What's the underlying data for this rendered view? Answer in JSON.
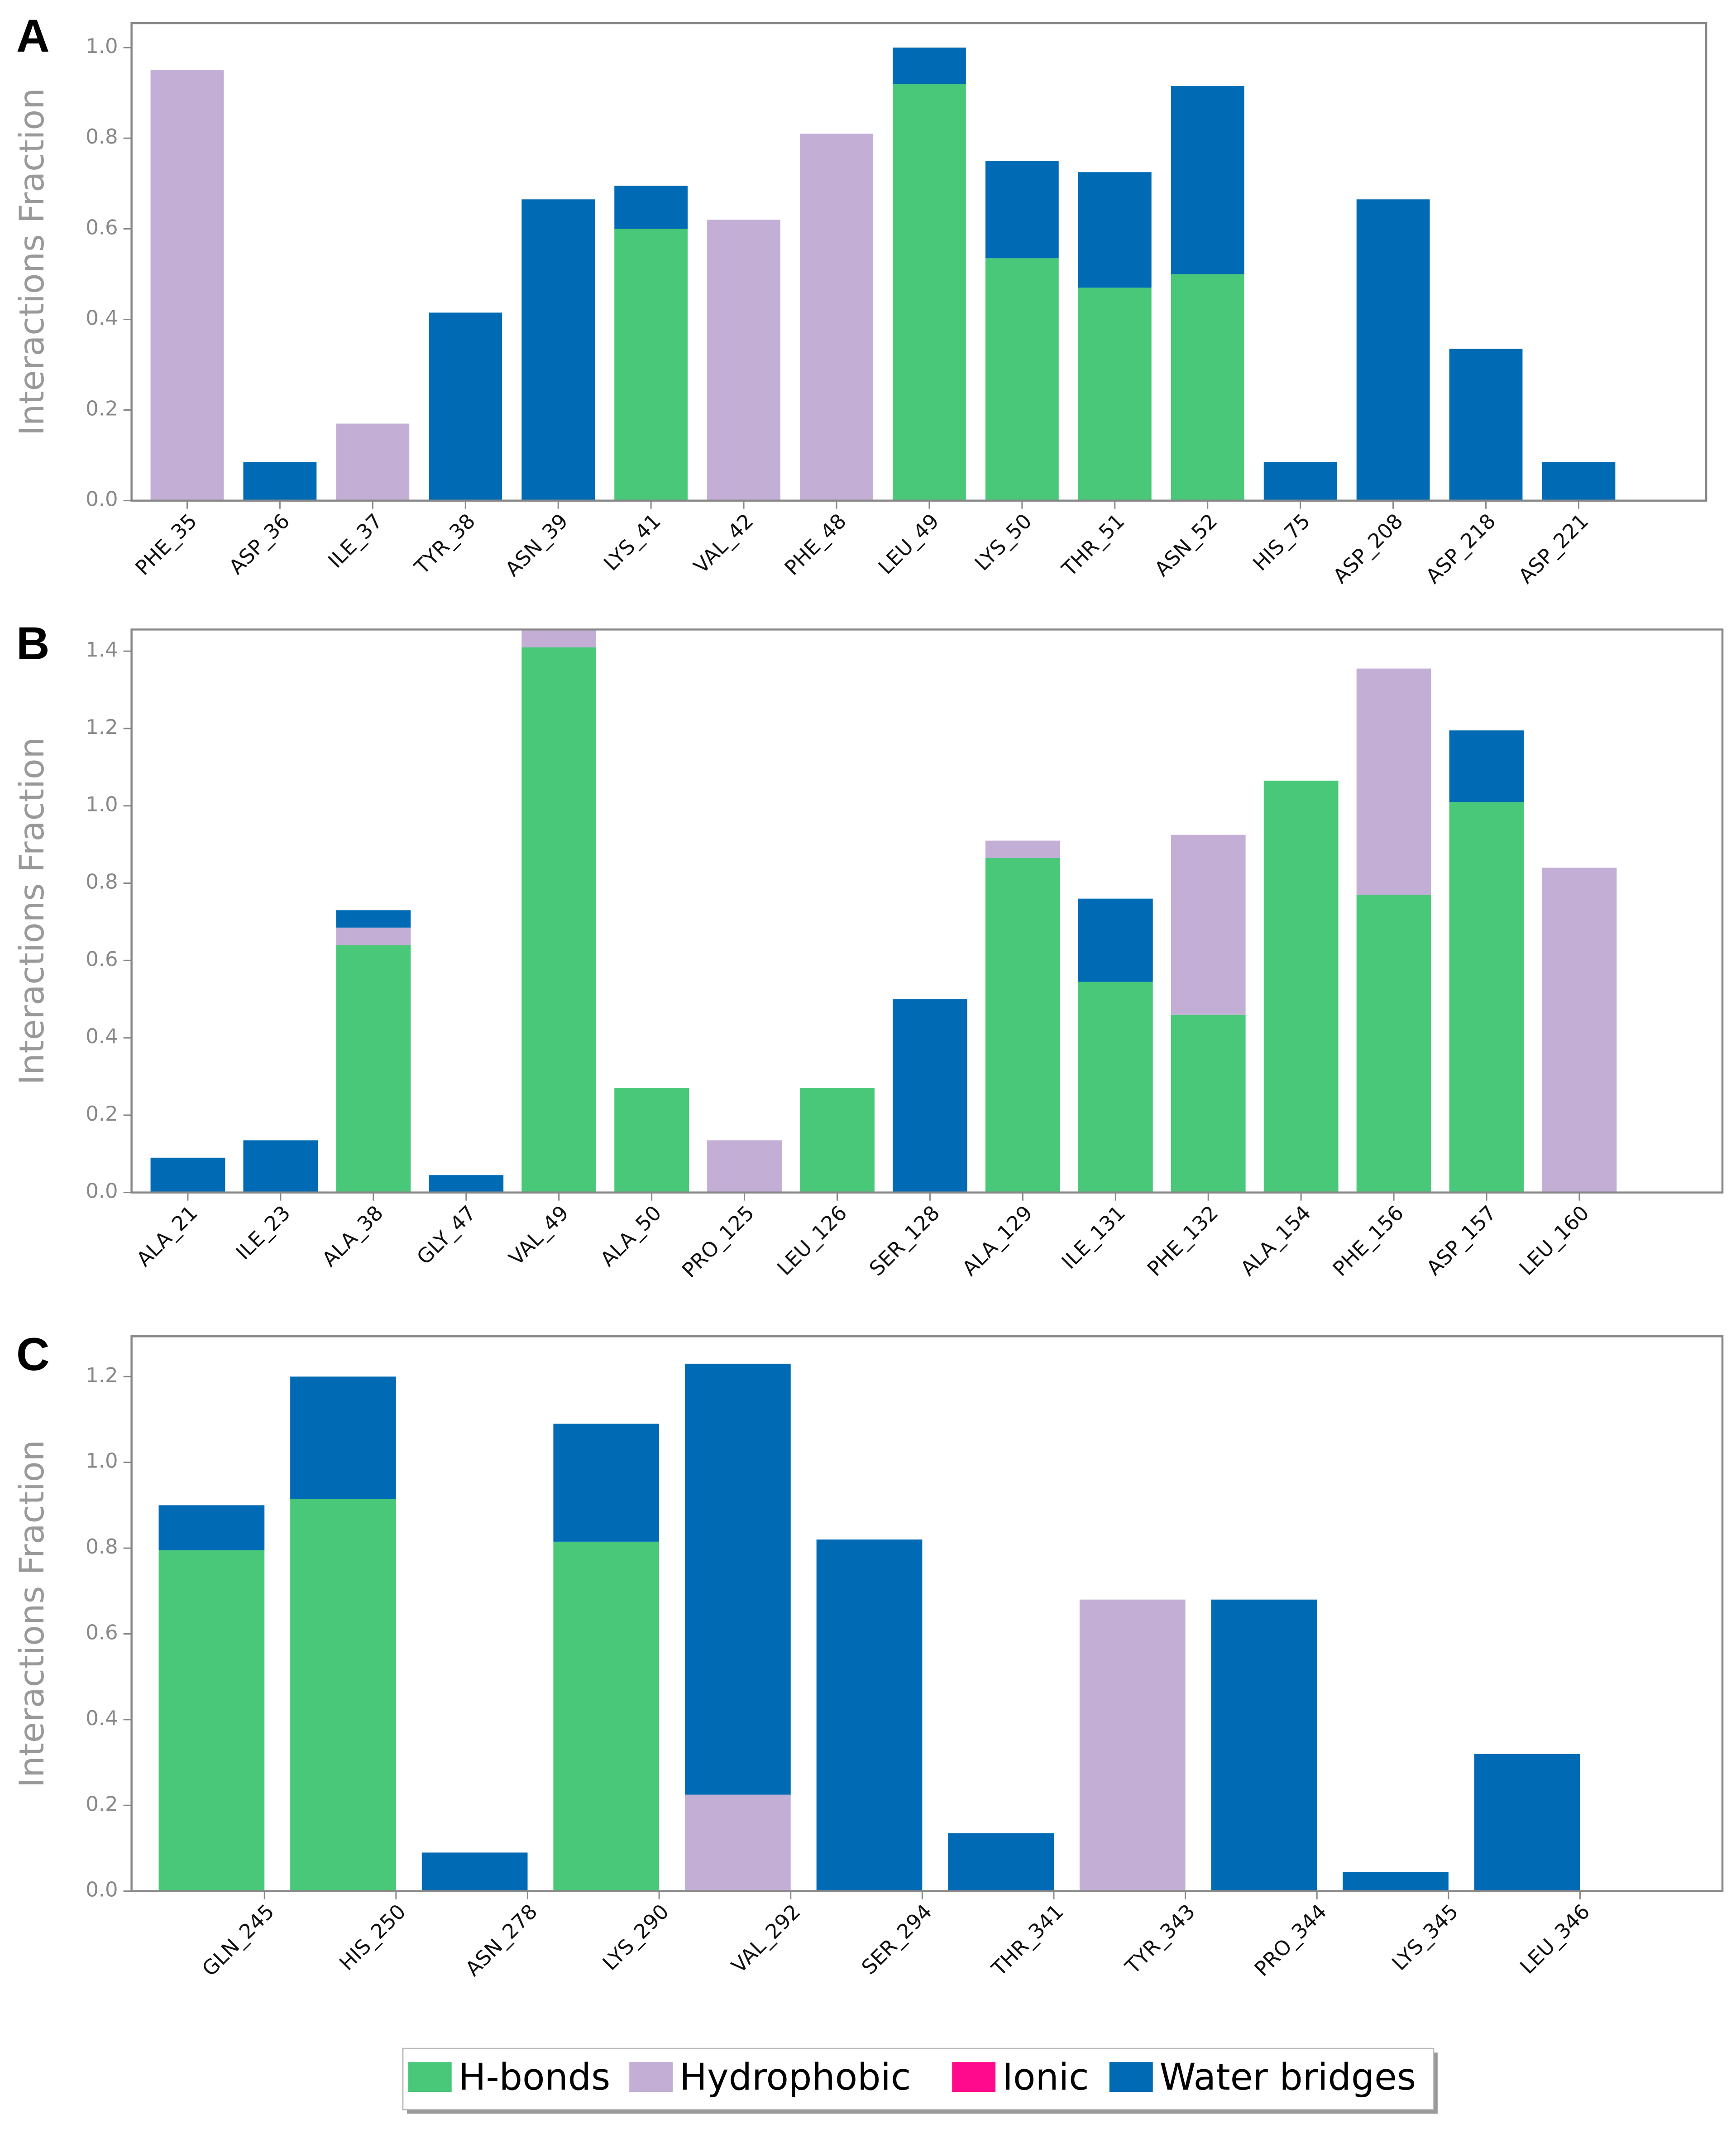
{
  "chart_data": [
    {
      "type": "bar",
      "stacked": true,
      "label": "A",
      "y_label": "Interactions Fraction",
      "categories": [
        "PHE_35",
        "ASP_36",
        "ILE_37",
        "TYR_38",
        "ASN_39",
        "LYS_41",
        "VAL_42",
        "PHE_48",
        "LEU_49",
        "LYS_50",
        "THR_51",
        "ASN_52",
        "HIS_75",
        "ASP_208",
        "ASP_218",
        "ASP_221"
      ],
      "series": [
        {
          "name": "H-bonds",
          "color": "#48c878",
          "values": [
            0,
            0,
            0,
            0,
            0,
            0.6,
            0,
            0,
            0.92,
            0.535,
            0.47,
            0.5,
            0,
            0,
            0,
            0
          ]
        },
        {
          "name": "Hydrophobic",
          "color": "#c3aed6",
          "values": [
            0.95,
            0,
            0.17,
            0,
            0,
            0,
            0.62,
            0.81,
            0,
            0,
            0,
            0,
            0,
            0,
            0,
            0
          ]
        },
        {
          "name": "Ionic",
          "color": "#ff0a8c",
          "values": [
            0,
            0,
            0,
            0,
            0,
            0,
            0,
            0,
            0,
            0,
            0,
            0,
            0,
            0,
            0,
            0
          ]
        },
        {
          "name": "Water bridges",
          "color": "#006ab4",
          "values": [
            0,
            0.085,
            0,
            0.415,
            0.665,
            0.095,
            0,
            0,
            0.08,
            0.215,
            0.255,
            0.415,
            0.085,
            0.665,
            0.335,
            0.085
          ]
        }
      ],
      "ylim": [
        0,
        1.054
      ],
      "yticks": [
        {
          "value": 0,
          "label": "0.0"
        },
        {
          "value": 0.2,
          "label": "0.2"
        },
        {
          "value": 0.4,
          "label": "0.4"
        },
        {
          "value": 0.6,
          "label": "0.6"
        },
        {
          "value": 0.8,
          "label": "0.8"
        },
        {
          "value": 1,
          "label": "1.0"
        }
      ],
      "legend": "bottom"
    },
    {
      "type": "bar",
      "stacked": true,
      "label": "B",
      "y_label": "Interactions Fraction",
      "categories": [
        "ALA_21",
        "ILE_23",
        "ALA_38",
        "GLY_47",
        "VAL_49",
        "ALA_50",
        "PRO_125",
        "LEU_126",
        "SER_128",
        "ALA_129",
        "ILE_131",
        "PHE_132",
        "ALA_154",
        "PHE_156",
        "ASP_157",
        "LEU_160"
      ],
      "series": [
        {
          "color": "#48c878",
          "values": [
            0,
            0,
            0.64,
            0,
            1.41,
            0.27,
            0,
            0.27,
            0,
            0.865,
            0.545,
            0.46,
            1.065,
            0.77,
            1.01,
            0
          ]
        },
        {
          "color": "#c3aed6",
          "values": [
            0,
            0,
            0.045,
            0,
            0.05,
            0,
            0.135,
            0,
            0,
            0.045,
            0,
            0.465,
            0,
            0.585,
            0,
            0.84
          ]
        },
        {
          "color": "#006ab4",
          "values": [
            0.09,
            0.135,
            0.045,
            0.045,
            0,
            0,
            0,
            0,
            0.5,
            0,
            0.215,
            0,
            0,
            0,
            0.185,
            0
          ]
        }
      ],
      "ylim": [
        0,
        1.456
      ],
      "yticks": [
        {
          "value": 0,
          "label": "0.0"
        },
        {
          "value": 0.2,
          "label": "0.2"
        },
        {
          "value": 0.4,
          "label": "0.4"
        },
        {
          "value": 0.6,
          "label": "0.6"
        },
        {
          "value": 0.8,
          "label": "0.8"
        },
        {
          "value": 1,
          "label": "1.0"
        },
        {
          "value": 1.2,
          "label": "1.2"
        },
        {
          "value": 1.4,
          "label": "1.4"
        }
      ]
    },
    {
      "type": "bar",
      "stacked": true,
      "label": "C",
      "y_label": "Interactions Fraction",
      "categories": [
        "GLN_245",
        "HIS_250",
        "ASN_278",
        "LYS_290",
        "VAL_292",
        "SER_294",
        "THR_341",
        "TYR_343",
        "PRO_344",
        "LYS_345",
        "LEU_346"
      ],
      "series": [
        {
          "color": "#48c878",
          "values": [
            0.795,
            0.915,
            0,
            0.815,
            0,
            0,
            0,
            0,
            0,
            0,
            0
          ]
        },
        {
          "color": "#c3aed6",
          "values": [
            0,
            0,
            0,
            0,
            0.225,
            0,
            0,
            0.68,
            0,
            0,
            0
          ]
        },
        {
          "color": "#006ab4",
          "values": [
            0.105,
            0.285,
            0.09,
            0.275,
            1.005,
            0.82,
            0.135,
            0,
            0.68,
            0.045,
            0.32
          ]
        }
      ],
      "ylim": [
        0,
        1.294
      ],
      "yticks": [
        {
          "value": 0,
          "label": "0.0"
        },
        {
          "value": 0.2,
          "label": "0.2"
        },
        {
          "value": 0.4,
          "label": "0.4"
        },
        {
          "value": 0.6,
          "label": "0.6"
        },
        {
          "value": 0.8,
          "label": "0.8"
        },
        {
          "value": 1,
          "label": "1.0"
        },
        {
          "value": 1.2,
          "label": "1.2"
        }
      ]
    }
  ]
}
